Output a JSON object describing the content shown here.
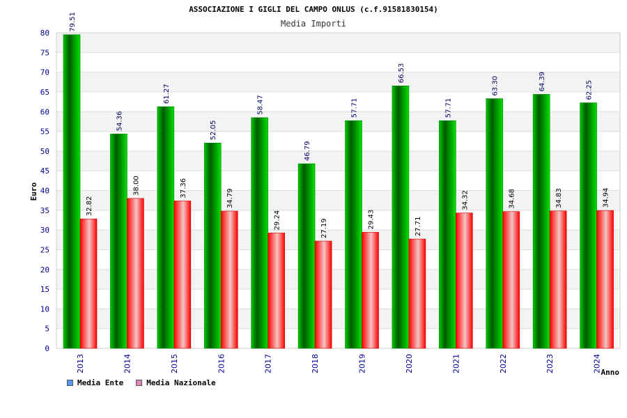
{
  "chart_data": {
    "type": "bar",
    "title": "ASSOCIAZIONE I GIGLI DEL CAMPO ONLUS (c.f.91581830154)",
    "subtitle": "Media Importi",
    "xlabel": "Anno",
    "ylabel": "Euro",
    "ylim": [
      0,
      80
    ],
    "ytick_step": 5,
    "grid": true,
    "legend_position": "bottom-left",
    "categories": [
      "2013",
      "2014",
      "2015",
      "2016",
      "2017",
      "2018",
      "2019",
      "2020",
      "2021",
      "2022",
      "2023",
      "2024"
    ],
    "series": [
      {
        "name": "Media Ente",
        "color": "#00bb00",
        "legend_color": "#5599ee",
        "values": [
          79.51,
          54.36,
          61.27,
          52.05,
          58.47,
          46.79,
          57.71,
          66.53,
          57.71,
          63.3,
          64.39,
          62.25
        ],
        "labels": [
          "79.51",
          "54.36",
          "61.27",
          "52.05",
          "58.47",
          "46.79",
          "57.71",
          "66.53",
          "57.71",
          "63.30",
          "64.39",
          "62.25"
        ]
      },
      {
        "name": "Media Nazionale",
        "color": "#ff2222",
        "legend_color": "#dd88bb",
        "values": [
          32.82,
          38.0,
          37.36,
          34.79,
          29.24,
          27.19,
          29.43,
          27.71,
          34.32,
          34.68,
          34.83,
          34.94
        ],
        "labels": [
          "32.82",
          "38.00",
          "37.36",
          "34.79",
          "29.24",
          "27.19",
          "29.43",
          "27.71",
          "34.32",
          "34.68",
          "34.83",
          "34.94"
        ]
      }
    ],
    "colors": {
      "axis_text": "#000099",
      "grid_band": "#f3f3f3",
      "grid_line": "#dddddd"
    }
  }
}
